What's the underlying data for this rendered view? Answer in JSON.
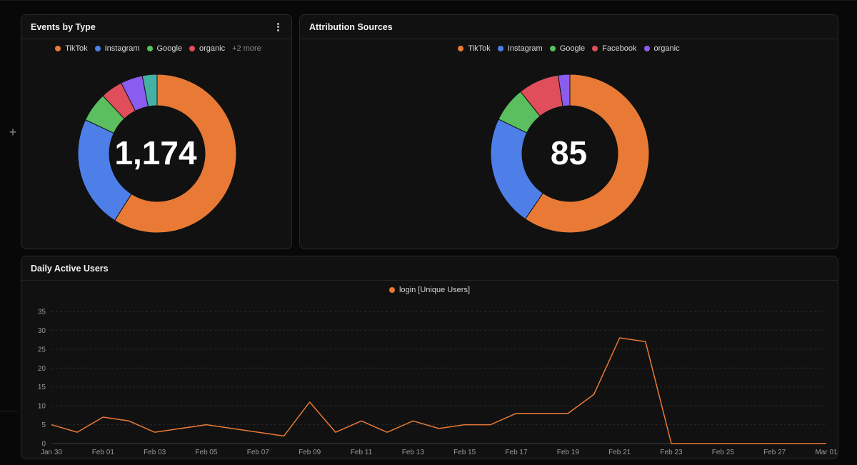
{
  "add_button": "+",
  "events_card": {
    "title": "Events by Type",
    "legend": [
      {
        "label": "TikTok",
        "color": "#e87a35"
      },
      {
        "label": "Instagram",
        "color": "#4e7fe8"
      },
      {
        "label": "Google",
        "color": "#5bbf5f"
      },
      {
        "label": "organic",
        "color": "#e04e5c"
      }
    ],
    "more_label": "+2 more",
    "total": "1,174"
  },
  "attribution_card": {
    "title": "Attribution Sources",
    "legend": [
      {
        "label": "TikTok",
        "color": "#e87a35"
      },
      {
        "label": "Instagram",
        "color": "#4e7fe8"
      },
      {
        "label": "Google",
        "color": "#5bbf5f"
      },
      {
        "label": "Facebook",
        "color": "#e04e5c"
      },
      {
        "label": "organic",
        "color": "#8b5cf0"
      }
    ],
    "total": "85"
  },
  "dau_card": {
    "title": "Daily Active Users",
    "legend_label": "login [Unique Users]",
    "legend_color": "#e87a35"
  },
  "chart_data": [
    {
      "type": "pie",
      "center_label": "1,174",
      "slices": [
        {
          "label": "TikTok",
          "value": 59.0,
          "color": "#e87a35"
        },
        {
          "label": "Instagram",
          "value": 23.0,
          "color": "#4e7fe8"
        },
        {
          "label": "Google",
          "value": 6.0,
          "color": "#5bbf5f"
        },
        {
          "label": "organic",
          "value": 4.5,
          "color": "#e04e5c"
        },
        {
          "value": 4.5,
          "color": "#8b5cf0"
        },
        {
          "value": 3.0,
          "color": "#45b0a4"
        }
      ]
    },
    {
      "type": "pie",
      "center_label": "85",
      "slices": [
        {
          "label": "TikTok",
          "value": 50,
          "color": "#e87a35"
        },
        {
          "label": "Instagram",
          "value": 19,
          "color": "#4e7fe8"
        },
        {
          "label": "Google",
          "value": 6,
          "color": "#5bbf5f"
        },
        {
          "label": "Facebook",
          "value": 7,
          "color": "#e04e5c"
        },
        {
          "label": "organic",
          "value": 2,
          "color": "#8b5cf0"
        }
      ]
    },
    {
      "type": "line",
      "grid": true,
      "legend": "top-center",
      "ylim": [
        0,
        35
      ],
      "yticks": [
        0,
        5,
        10,
        15,
        20,
        25,
        30,
        35
      ],
      "xticks": [
        "Jan 30",
        "Feb 01",
        "Feb 03",
        "Feb 05",
        "Feb 07",
        "Feb 09",
        "Feb 11",
        "Feb 13",
        "Feb 15",
        "Feb 17",
        "Feb 19",
        "Feb 21",
        "Feb 23",
        "Feb 25",
        "Feb 27",
        "Mar 01"
      ],
      "x": [
        "Jan 30",
        "Jan 31",
        "Feb 01",
        "Feb 02",
        "Feb 03",
        "Feb 04",
        "Feb 05",
        "Feb 06",
        "Feb 07",
        "Feb 08",
        "Feb 09",
        "Feb 10",
        "Feb 11",
        "Feb 12",
        "Feb 13",
        "Feb 14",
        "Feb 15",
        "Feb 16",
        "Feb 17",
        "Feb 18",
        "Feb 19",
        "Feb 20",
        "Feb 21",
        "Feb 22",
        "Feb 23",
        "Feb 24",
        "Feb 25",
        "Feb 26",
        "Feb 27",
        "Feb 28",
        "Mar 01"
      ],
      "series": [
        {
          "name": "login [Unique Users]",
          "color": "#e87a35",
          "values": [
            5,
            3,
            7,
            6,
            3,
            4,
            5,
            4,
            3,
            2,
            11,
            3,
            6,
            3,
            6,
            4,
            5,
            5,
            8,
            8,
            8,
            13,
            28,
            27,
            0,
            0,
            0,
            0,
            0,
            0,
            0
          ]
        }
      ]
    }
  ]
}
